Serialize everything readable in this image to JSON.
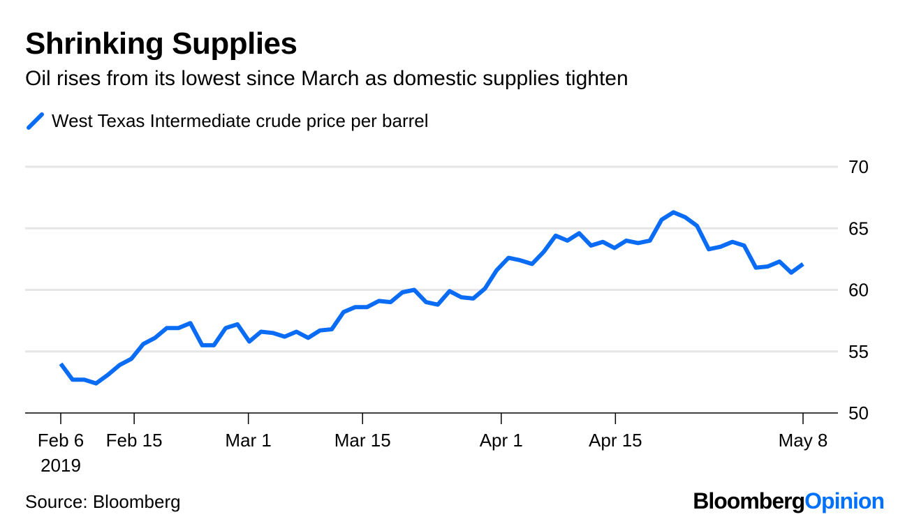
{
  "title": "Shrinking Supplies",
  "subtitle": "Oil rises from its lowest since March as domestic supplies tighten",
  "legend": {
    "label": "West Texas Intermediate crude price per barrel",
    "color": "#0a6cf5"
  },
  "source": "Source: Bloomberg",
  "brand": {
    "part1": "Bloomberg",
    "part2": "Opinion"
  },
  "chart_data": {
    "type": "line",
    "title": "Shrinking Supplies",
    "subtitle": "Oil rises from its lowest since March as domestic supplies tighten",
    "xlabel": "",
    "ylabel": "",
    "ylim": [
      50,
      70
    ],
    "yticks": [
      50,
      55,
      60,
      65,
      70
    ],
    "y_axis_side": "right",
    "grid": true,
    "legend_position": "top-left",
    "x_ticks": [
      {
        "date": "2019-02-06",
        "label": "Feb 6",
        "sublabel": "2019"
      },
      {
        "date": "2019-02-15",
        "label": "Feb 15"
      },
      {
        "date": "2019-03-01",
        "label": "Mar 1"
      },
      {
        "date": "2019-03-15",
        "label": "Mar 15"
      },
      {
        "date": "2019-04-01",
        "label": "Apr 1"
      },
      {
        "date": "2019-04-15",
        "label": "Apr 15"
      },
      {
        "date": "2019-05-08",
        "label": "May 8"
      }
    ],
    "series": [
      {
        "name": "West Texas Intermediate crude price per barrel",
        "color": "#0a6cf5",
        "points": [
          [
            "2019-02-06",
            54.0
          ],
          [
            "2019-02-07",
            52.7
          ],
          [
            "2019-02-08",
            52.7
          ],
          [
            "2019-02-11",
            52.4
          ],
          [
            "2019-02-12",
            53.1
          ],
          [
            "2019-02-13",
            53.9
          ],
          [
            "2019-02-14",
            54.4
          ],
          [
            "2019-02-15",
            55.6
          ],
          [
            "2019-02-19",
            56.1
          ],
          [
            "2019-02-20",
            56.9
          ],
          [
            "2019-02-21",
            56.9
          ],
          [
            "2019-02-22",
            57.3
          ],
          [
            "2019-02-25",
            55.5
          ],
          [
            "2019-02-26",
            55.5
          ],
          [
            "2019-02-27",
            56.9
          ],
          [
            "2019-02-28",
            57.2
          ],
          [
            "2019-03-01",
            55.8
          ],
          [
            "2019-03-04",
            56.6
          ],
          [
            "2019-03-05",
            56.5
          ],
          [
            "2019-03-06",
            56.2
          ],
          [
            "2019-03-07",
            56.6
          ],
          [
            "2019-03-08",
            56.1
          ],
          [
            "2019-03-11",
            56.7
          ],
          [
            "2019-03-12",
            56.8
          ],
          [
            "2019-03-13",
            58.2
          ],
          [
            "2019-03-14",
            58.6
          ],
          [
            "2019-03-15",
            58.6
          ],
          [
            "2019-03-18",
            59.1
          ],
          [
            "2019-03-19",
            59.0
          ],
          [
            "2019-03-20",
            59.8
          ],
          [
            "2019-03-21",
            60.0
          ],
          [
            "2019-03-22",
            59.0
          ],
          [
            "2019-03-25",
            58.8
          ],
          [
            "2019-03-26",
            59.9
          ],
          [
            "2019-03-27",
            59.4
          ],
          [
            "2019-03-28",
            59.3
          ],
          [
            "2019-03-29",
            60.1
          ],
          [
            "2019-04-01",
            61.6
          ],
          [
            "2019-04-02",
            62.6
          ],
          [
            "2019-04-03",
            62.4
          ],
          [
            "2019-04-04",
            62.1
          ],
          [
            "2019-04-05",
            63.1
          ],
          [
            "2019-04-08",
            64.4
          ],
          [
            "2019-04-09",
            64.0
          ],
          [
            "2019-04-10",
            64.6
          ],
          [
            "2019-04-11",
            63.6
          ],
          [
            "2019-04-12",
            63.9
          ],
          [
            "2019-04-15",
            63.4
          ],
          [
            "2019-04-16",
            64.0
          ],
          [
            "2019-04-17",
            63.8
          ],
          [
            "2019-04-18",
            64.0
          ],
          [
            "2019-04-22",
            65.7
          ],
          [
            "2019-04-23",
            66.3
          ],
          [
            "2019-04-24",
            65.9
          ],
          [
            "2019-04-25",
            65.2
          ],
          [
            "2019-04-26",
            63.3
          ],
          [
            "2019-04-29",
            63.5
          ],
          [
            "2019-04-30",
            63.9
          ],
          [
            "2019-05-01",
            63.6
          ],
          [
            "2019-05-02",
            61.8
          ],
          [
            "2019-05-03",
            61.9
          ],
          [
            "2019-05-06",
            62.3
          ],
          [
            "2019-05-07",
            61.4
          ],
          [
            "2019-05-08",
            62.1
          ]
        ]
      }
    ]
  }
}
